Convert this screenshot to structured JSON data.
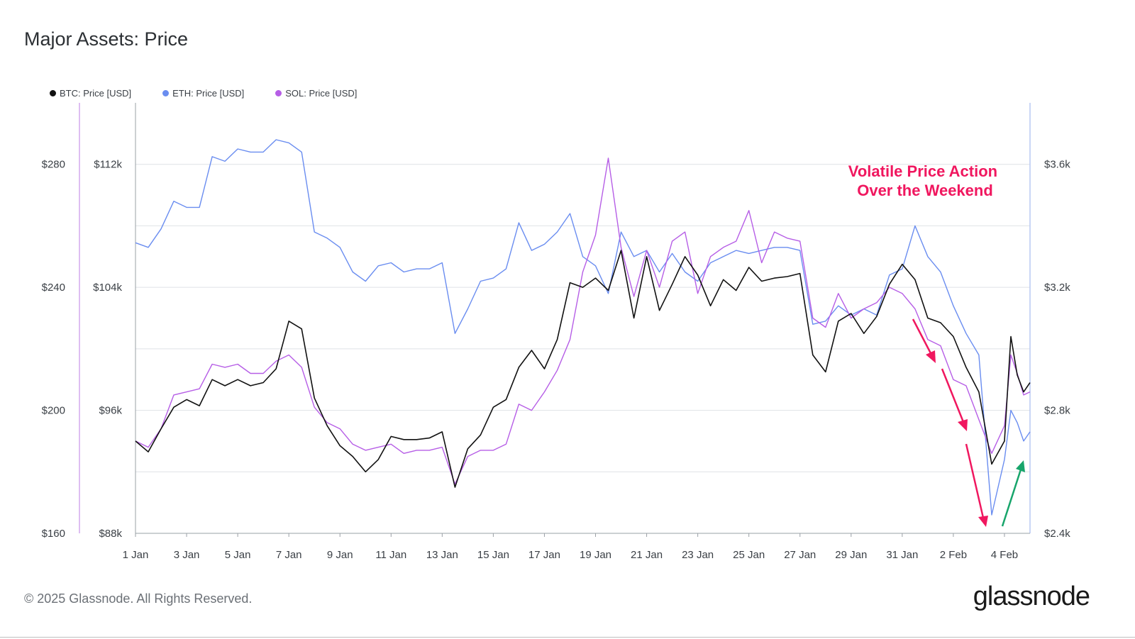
{
  "title": "Major Assets: Price",
  "footer": "© 2025 Glassnode. All Rights Reserved.",
  "brand": "glassnode",
  "chart_data": {
    "type": "line",
    "legend_position": "top-left",
    "grid": true,
    "colors": {
      "BTC": "#111111",
      "ETH": "#6a8df0",
      "SOL": "#b65ee6",
      "annotation": "#f0175f",
      "up_arrow": "#18a56b"
    },
    "x_ticks": [
      "1 Jan",
      "3 Jan",
      "5 Jan",
      "7 Jan",
      "9 Jan",
      "11 Jan",
      "13 Jan",
      "15 Jan",
      "17 Jan",
      "19 Jan",
      "21 Jan",
      "23 Jan",
      "25 Jan",
      "27 Jan",
      "29 Jan",
      "31 Jan",
      "2 Feb",
      "4 Feb"
    ],
    "x_range": [
      "2025-01-01",
      "2025-02-05"
    ],
    "y_axes": {
      "sol": {
        "ticks": [
          "$160",
          "$200",
          "$240",
          "$280"
        ],
        "range": [
          160,
          300
        ]
      },
      "btc": {
        "ticks": [
          "$88k",
          "$96k",
          "$104k",
          "$112k"
        ],
        "range": [
          88000,
          116000
        ]
      },
      "eth": {
        "ticks": [
          "$2.4k",
          "$2.8k",
          "$3.2k",
          "$3.6k"
        ],
        "range": [
          2400,
          3800
        ]
      }
    },
    "series": [
      {
        "name": "BTC: Price [USD]",
        "axis": "btc",
        "color": "#111111",
        "points": [
          [
            "2025-01-01",
            94000
          ],
          [
            "2025-01-01T12:00",
            93300
          ],
          [
            "2025-01-02",
            94800
          ],
          [
            "2025-01-02T12:00",
            96200
          ],
          [
            "2025-01-03",
            96700
          ],
          [
            "2025-01-03T12:00",
            96300
          ],
          [
            "2025-01-04",
            98000
          ],
          [
            "2025-01-04T12:00",
            97600
          ],
          [
            "2025-01-05",
            98000
          ],
          [
            "2025-01-05T12:00",
            97600
          ],
          [
            "2025-01-06",
            97800
          ],
          [
            "2025-01-06T12:00",
            98700
          ],
          [
            "2025-01-07",
            101800
          ],
          [
            "2025-01-07T12:00",
            101300
          ],
          [
            "2025-01-08",
            96800
          ],
          [
            "2025-01-08T12:00",
            95000
          ],
          [
            "2025-01-09",
            93700
          ],
          [
            "2025-01-09T12:00",
            93000
          ],
          [
            "2025-01-10",
            92000
          ],
          [
            "2025-01-10T12:00",
            92800
          ],
          [
            "2025-01-11",
            94300
          ],
          [
            "2025-01-11T12:00",
            94100
          ],
          [
            "2025-01-12",
            94100
          ],
          [
            "2025-01-12T12:00",
            94200
          ],
          [
            "2025-01-13",
            94600
          ],
          [
            "2025-01-13T12:00",
            91000
          ],
          [
            "2025-01-14",
            93500
          ],
          [
            "2025-01-14T12:00",
            94400
          ],
          [
            "2025-01-15",
            96200
          ],
          [
            "2025-01-15T12:00",
            96700
          ],
          [
            "2025-01-16",
            98800
          ],
          [
            "2025-01-16T12:00",
            99900
          ],
          [
            "2025-01-17",
            98700
          ],
          [
            "2025-01-17T12:00",
            100600
          ],
          [
            "2025-01-18",
            104300
          ],
          [
            "2025-01-18T12:00",
            104000
          ],
          [
            "2025-01-19",
            104600
          ],
          [
            "2025-01-19T12:00",
            103800
          ],
          [
            "2025-01-20",
            106400
          ],
          [
            "2025-01-20T12:00",
            102000
          ],
          [
            "2025-01-21",
            106000
          ],
          [
            "2025-01-21T12:00",
            102500
          ],
          [
            "2025-01-22",
            104200
          ],
          [
            "2025-01-22T12:00",
            106000
          ],
          [
            "2025-01-23",
            104800
          ],
          [
            "2025-01-23T12:00",
            102800
          ],
          [
            "2025-01-24",
            104500
          ],
          [
            "2025-01-24T12:00",
            103800
          ],
          [
            "2025-01-25",
            105300
          ],
          [
            "2025-01-25T12:00",
            104400
          ],
          [
            "2025-01-26",
            104600
          ],
          [
            "2025-01-26T12:00",
            104700
          ],
          [
            "2025-01-27",
            104900
          ],
          [
            "2025-01-27T12:00",
            99600
          ],
          [
            "2025-01-28",
            98500
          ],
          [
            "2025-01-28T12:00",
            101800
          ],
          [
            "2025-01-29",
            102300
          ],
          [
            "2025-01-29T12:00",
            101000
          ],
          [
            "2025-01-30",
            102100
          ],
          [
            "2025-01-30T12:00",
            104200
          ],
          [
            "2025-01-31",
            105500
          ],
          [
            "2025-01-31T12:00",
            104500
          ],
          [
            "2025-02-01",
            102000
          ],
          [
            "2025-02-01T12:00",
            101700
          ],
          [
            "2025-02-02",
            100800
          ],
          [
            "2025-02-02T12:00",
            98800
          ],
          [
            "2025-02-03",
            97200
          ],
          [
            "2025-02-03T12:00",
            92500
          ],
          [
            "2025-02-04",
            94000
          ],
          [
            "2025-02-04T06:00",
            100800
          ],
          [
            "2025-02-04T12:00",
            98300
          ],
          [
            "2025-02-04T18:00",
            97200
          ],
          [
            "2025-02-05",
            97800
          ]
        ]
      },
      {
        "name": "ETH: Price [USD]",
        "axis": "eth",
        "color": "#6a8df0",
        "points": [
          [
            "2025-01-01",
            3345
          ],
          [
            "2025-01-01T12:00",
            3330
          ],
          [
            "2025-01-02",
            3390
          ],
          [
            "2025-01-02T12:00",
            3480
          ],
          [
            "2025-01-03",
            3460
          ],
          [
            "2025-01-03T12:00",
            3460
          ],
          [
            "2025-01-04",
            3625
          ],
          [
            "2025-01-04T12:00",
            3610
          ],
          [
            "2025-01-05",
            3650
          ],
          [
            "2025-01-05T12:00",
            3640
          ],
          [
            "2025-01-06",
            3640
          ],
          [
            "2025-01-06T12:00",
            3680
          ],
          [
            "2025-01-07",
            3670
          ],
          [
            "2025-01-07T12:00",
            3640
          ],
          [
            "2025-01-08",
            3380
          ],
          [
            "2025-01-08T12:00",
            3360
          ],
          [
            "2025-01-09",
            3330
          ],
          [
            "2025-01-09T12:00",
            3250
          ],
          [
            "2025-01-10",
            3220
          ],
          [
            "2025-01-10T12:00",
            3270
          ],
          [
            "2025-01-11",
            3280
          ],
          [
            "2025-01-11T12:00",
            3250
          ],
          [
            "2025-01-12",
            3260
          ],
          [
            "2025-01-12T12:00",
            3260
          ],
          [
            "2025-01-13",
            3280
          ],
          [
            "2025-01-13T12:00",
            3050
          ],
          [
            "2025-01-14",
            3130
          ],
          [
            "2025-01-14T12:00",
            3220
          ],
          [
            "2025-01-15",
            3230
          ],
          [
            "2025-01-15T12:00",
            3260
          ],
          [
            "2025-01-16",
            3410
          ],
          [
            "2025-01-16T12:00",
            3320
          ],
          [
            "2025-01-17",
            3340
          ],
          [
            "2025-01-17T12:00",
            3380
          ],
          [
            "2025-01-18",
            3440
          ],
          [
            "2025-01-18T12:00",
            3300
          ],
          [
            "2025-01-19",
            3270
          ],
          [
            "2025-01-19T12:00",
            3180
          ],
          [
            "2025-01-20",
            3380
          ],
          [
            "2025-01-20T12:00",
            3300
          ],
          [
            "2025-01-21",
            3320
          ],
          [
            "2025-01-21T12:00",
            3250
          ],
          [
            "2025-01-22",
            3310
          ],
          [
            "2025-01-22T12:00",
            3250
          ],
          [
            "2025-01-23",
            3220
          ],
          [
            "2025-01-23T12:00",
            3280
          ],
          [
            "2025-01-24",
            3300
          ],
          [
            "2025-01-24T12:00",
            3320
          ],
          [
            "2025-01-25",
            3310
          ],
          [
            "2025-01-25T12:00",
            3320
          ],
          [
            "2025-01-26",
            3330
          ],
          [
            "2025-01-26T12:00",
            3330
          ],
          [
            "2025-01-27",
            3320
          ],
          [
            "2025-01-27T12:00",
            3080
          ],
          [
            "2025-01-28",
            3090
          ],
          [
            "2025-01-28T12:00",
            3140
          ],
          [
            "2025-01-29",
            3110
          ],
          [
            "2025-01-29T12:00",
            3130
          ],
          [
            "2025-01-30",
            3110
          ],
          [
            "2025-01-30T12:00",
            3240
          ],
          [
            "2025-01-31",
            3260
          ],
          [
            "2025-01-31T12:00",
            3400
          ],
          [
            "2025-02-01",
            3300
          ],
          [
            "2025-02-01T12:00",
            3250
          ],
          [
            "2025-02-02",
            3140
          ],
          [
            "2025-02-02T12:00",
            3050
          ],
          [
            "2025-02-03",
            2980
          ],
          [
            "2025-02-03T12:00",
            2460
          ],
          [
            "2025-02-04",
            2640
          ],
          [
            "2025-02-04T06:00",
            2800
          ],
          [
            "2025-02-04T12:00",
            2760
          ],
          [
            "2025-02-04T18:00",
            2700
          ],
          [
            "2025-02-05",
            2730
          ]
        ]
      },
      {
        "name": "SOL: Price [USD]",
        "axis": "sol",
        "color": "#b65ee6",
        "points": [
          [
            "2025-01-01",
            190
          ],
          [
            "2025-01-01T12:00",
            188
          ],
          [
            "2025-01-02",
            194
          ],
          [
            "2025-01-02T12:00",
            205
          ],
          [
            "2025-01-03",
            206
          ],
          [
            "2025-01-03T12:00",
            207
          ],
          [
            "2025-01-04",
            215
          ],
          [
            "2025-01-04T12:00",
            214
          ],
          [
            "2025-01-05",
            215
          ],
          [
            "2025-01-05T12:00",
            212
          ],
          [
            "2025-01-06",
            212
          ],
          [
            "2025-01-06T12:00",
            216
          ],
          [
            "2025-01-07",
            218
          ],
          [
            "2025-01-07T12:00",
            214
          ],
          [
            "2025-01-08",
            201
          ],
          [
            "2025-01-08T12:00",
            196
          ],
          [
            "2025-01-09",
            194
          ],
          [
            "2025-01-09T12:00",
            189
          ],
          [
            "2025-01-10",
            187
          ],
          [
            "2025-01-10T12:00",
            188
          ],
          [
            "2025-01-11",
            189
          ],
          [
            "2025-01-11T12:00",
            186
          ],
          [
            "2025-01-12",
            187
          ],
          [
            "2025-01-12T12:00",
            187
          ],
          [
            "2025-01-13",
            188
          ],
          [
            "2025-01-13T12:00",
            176
          ],
          [
            "2025-01-14",
            185
          ],
          [
            "2025-01-14T12:00",
            187
          ],
          [
            "2025-01-15",
            187
          ],
          [
            "2025-01-15T12:00",
            189
          ],
          [
            "2025-01-16",
            202
          ],
          [
            "2025-01-16T12:00",
            200
          ],
          [
            "2025-01-17",
            206
          ],
          [
            "2025-01-17T12:00",
            213
          ],
          [
            "2025-01-18",
            223
          ],
          [
            "2025-01-18T12:00",
            245
          ],
          [
            "2025-01-19",
            257
          ],
          [
            "2025-01-19T12:00",
            282
          ],
          [
            "2025-01-20",
            253
          ],
          [
            "2025-01-20T12:00",
            237
          ],
          [
            "2025-01-21",
            252
          ],
          [
            "2025-01-21T12:00",
            240
          ],
          [
            "2025-01-22",
            255
          ],
          [
            "2025-01-22T12:00",
            258
          ],
          [
            "2025-01-23",
            238
          ],
          [
            "2025-01-23T12:00",
            250
          ],
          [
            "2025-01-24",
            253
          ],
          [
            "2025-01-24T12:00",
            255
          ],
          [
            "2025-01-25",
            265
          ],
          [
            "2025-01-25T12:00",
            248
          ],
          [
            "2025-01-26",
            258
          ],
          [
            "2025-01-26T12:00",
            256
          ],
          [
            "2025-01-27",
            255
          ],
          [
            "2025-01-27T12:00",
            230
          ],
          [
            "2025-01-28",
            227
          ],
          [
            "2025-01-28T12:00",
            238
          ],
          [
            "2025-01-29",
            230
          ],
          [
            "2025-01-29T12:00",
            233
          ],
          [
            "2025-01-30",
            235
          ],
          [
            "2025-01-30T12:00",
            240
          ],
          [
            "2025-01-31",
            238
          ],
          [
            "2025-01-31T12:00",
            233
          ],
          [
            "2025-02-01",
            223
          ],
          [
            "2025-02-01T12:00",
            221
          ],
          [
            "2025-02-02",
            210
          ],
          [
            "2025-02-02T12:00",
            208
          ],
          [
            "2025-02-03",
            197
          ],
          [
            "2025-02-03T12:00",
            186
          ],
          [
            "2025-02-04",
            195
          ],
          [
            "2025-02-04T06:00",
            218
          ],
          [
            "2025-02-04T12:00",
            212
          ],
          [
            "2025-02-04T18:00",
            205
          ],
          [
            "2025-02-05",
            206
          ]
        ]
      }
    ],
    "annotations": [
      {
        "text_lines": [
          "Volatile Price Action",
          "Over the Weekend"
        ],
        "color": "#f0175f"
      }
    ]
  }
}
